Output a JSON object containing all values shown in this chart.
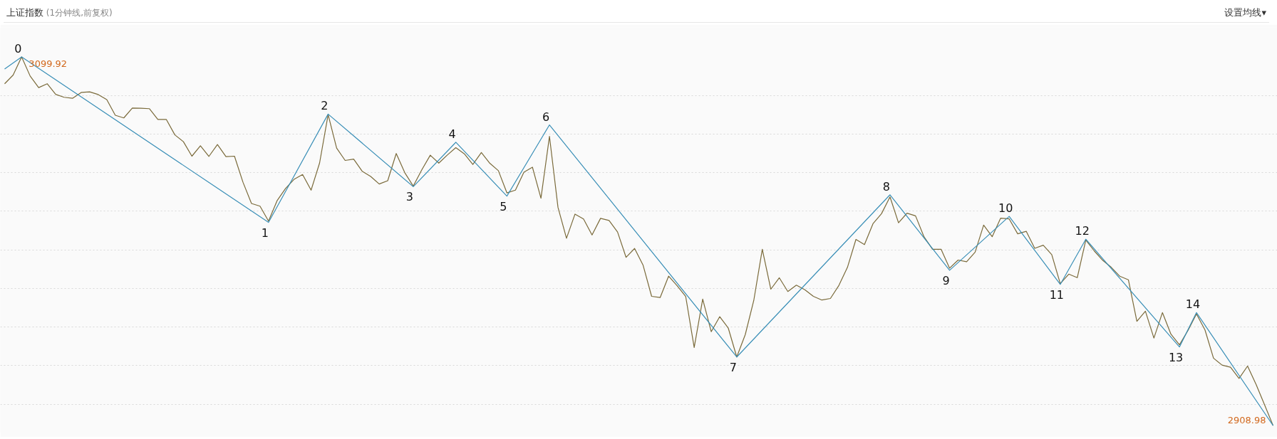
{
  "chart_data": {
    "type": "line",
    "title": "上证指数",
    "subtitle": "(1分钟线,前复权)",
    "categories": [
      null,
      null,
      null,
      null,
      null,
      null,
      null,
      null,
      null,
      null,
      null,
      null,
      null,
      null,
      null,
      null,
      null,
      null,
      null,
      null,
      null,
      null,
      null,
      null,
      null,
      null,
      null,
      null,
      null,
      null,
      null,
      null,
      null,
      null,
      null,
      null,
      null,
      null,
      null,
      null,
      null,
      null,
      null,
      null,
      null,
      null,
      null,
      null,
      null,
      null,
      null,
      null,
      null,
      null,
      null,
      null,
      null,
      null,
      null,
      null,
      null,
      null,
      null,
      null,
      null,
      null,
      null,
      null,
      null,
      null,
      null,
      null,
      null,
      null,
      null,
      null,
      null,
      null,
      null,
      null,
      null,
      null,
      null,
      null,
      null,
      null,
      null,
      null,
      null,
      null,
      null,
      null,
      null,
      null,
      null,
      null,
      null,
      null,
      null,
      null,
      null,
      null,
      null,
      null,
      null,
      null,
      null,
      null,
      null,
      null,
      null,
      null,
      null,
      null,
      null,
      null,
      null,
      null,
      null,
      null,
      null,
      null,
      null,
      null,
      null,
      null,
      null,
      null,
      null,
      null,
      null,
      null,
      null,
      null,
      null,
      null,
      null,
      null,
      null,
      null,
      null,
      null,
      null,
      null,
      null,
      null,
      null,
      null,
      null,
      null
    ],
    "yticks": [
      {
        "value": 2920,
        "label": null
      },
      {
        "value": 2940,
        "label": null
      },
      {
        "value": 2960,
        "label": null
      },
      {
        "value": 2980,
        "label": null
      },
      {
        "value": 3000,
        "label": null
      },
      {
        "value": 3020,
        "label": null
      },
      {
        "value": 3040,
        "label": null
      },
      {
        "value": 3060,
        "label": null
      },
      {
        "value": 3080,
        "label": null
      }
    ],
    "grid": "y",
    "tick_labels": false,
    "marker": "none",
    "line_style": "solid",
    "series": [
      {
        "color": "#7a6a3a",
        "values": [
          3086.0,
          3090.5,
          3099.92,
          3090.0,
          3084.0,
          3086.0,
          3080.5,
          3079.0,
          3078.5,
          3081.5,
          3081.8,
          3080.4,
          3077.8,
          3069.7,
          3068.3,
          3073.4,
          3073.3,
          3073.1,
          3067.5,
          3067.5,
          3059.5,
          3056.0,
          3048.5,
          3053.9,
          3048.4,
          3054.5,
          3048.3,
          3048.5,
          3035.0,
          3024.0,
          3022.6,
          3014.9,
          3025.4,
          3031.8,
          3036.5,
          3039.0,
          3030.9,
          3045.0,
          3070.0,
          3052.7,
          3046.3,
          3047.0,
          3040.7,
          3038.0,
          3034.1,
          3035.8,
          3049.9,
          3040.0,
          3033.0,
          3041.4,
          3049.0,
          3044.9,
          3049.1,
          3052.9,
          3049.7,
          3044.2,
          3050.4,
          3044.8,
          3041.0,
          3029.5,
          3030.9,
          3040.2,
          3042.8,
          3026.7,
          3058.8,
          3022.0,
          3006.0,
          3018.5,
          3016.0,
          3007.7,
          3016.3,
          3015.2,
          3009.2,
          2996.1,
          3000.7,
          2992.0,
          2975.9,
          2975.3,
          2986.4,
          2981.4,
          2975.9,
          2949.4,
          2974.5,
          2957.6,
          2965.4,
          2959.5,
          2944.5,
          2956.1,
          2973.8,
          3000.3,
          2979.6,
          2985.5,
          2978.4,
          2981.7,
          2979.3,
          2975.9,
          2974.0,
          2974.8,
          2981.6,
          2990.9,
          3005.4,
          3002.7,
          3013.5,
          3018.7,
          3027.4,
          3014.0,
          3019.0,
          3017.6,
          3006.7,
          3000.3,
          3000.3,
          2990.5,
          2994.7,
          2993.8,
          2998.8,
          3012.8,
          3006.8,
          3016.4,
          3016.0,
          3008.3,
          3009.6,
          3000.8,
          3002.4,
          2997.5,
          2982.5,
          2987.4,
          2985.6,
          3005.1,
          2999.4,
          2994.5,
          2990.9,
          2986.3,
          2984.5,
          2963.0,
          2968.2,
          2954.3,
          2967.5,
          2956.3,
          2950.8,
          2958.2,
          2966.8,
          2958.5,
          2943.9,
          2940.3,
          2939.2,
          2933.4,
          2939.8,
          2930.3,
          2919.7,
          2908.98
        ],
        "value_labels": [
          null,
          null,
          "3099.92",
          null,
          null,
          null,
          null,
          null,
          null,
          null,
          null,
          null,
          null,
          null,
          null,
          null,
          null,
          null,
          null,
          null,
          null,
          null,
          null,
          null,
          null,
          null,
          null,
          null,
          null,
          null,
          null,
          null,
          null,
          null,
          null,
          null,
          null,
          null,
          null,
          null,
          null,
          null,
          null,
          null,
          null,
          null,
          null,
          null,
          null,
          null,
          null,
          null,
          null,
          null,
          null,
          null,
          null,
          null,
          null,
          null,
          null,
          null,
          null,
          null,
          null,
          null,
          null,
          null,
          null,
          null,
          null,
          null,
          null,
          null,
          null,
          null,
          null,
          null,
          null,
          null,
          null,
          null,
          null,
          null,
          null,
          null,
          null,
          null,
          null,
          null,
          null,
          null,
          null,
          null,
          null,
          null,
          null,
          null,
          null,
          null,
          null,
          null,
          null,
          null,
          null,
          null,
          null,
          null,
          null,
          null,
          null,
          null,
          null,
          null,
          null,
          null,
          null,
          null,
          null,
          null,
          null,
          null,
          null,
          null,
          null,
          null,
          null,
          null,
          null,
          null,
          null,
          null,
          null,
          null,
          null,
          null,
          null,
          null,
          null,
          null,
          null,
          null,
          null,
          null,
          null,
          null,
          null,
          null,
          null,
          "2908.98"
        ]
      },
      {
        "color": "#3a8fb7",
        "values": [
          3093.6,
          null,
          3099.92,
          null,
          null,
          null,
          null,
          null,
          null,
          null,
          null,
          null,
          null,
          null,
          null,
          null,
          null,
          null,
          null,
          null,
          null,
          null,
          null,
          null,
          null,
          null,
          null,
          null,
          null,
          null,
          null,
          3014.2,
          null,
          null,
          null,
          null,
          null,
          null,
          3070.3,
          null,
          null,
          null,
          null,
          null,
          null,
          null,
          null,
          null,
          3032.7,
          null,
          null,
          null,
          null,
          3055.7,
          null,
          null,
          null,
          null,
          null,
          3027.8,
          null,
          null,
          null,
          null,
          3064.7,
          null,
          null,
          null,
          null,
          null,
          null,
          null,
          null,
          null,
          null,
          null,
          null,
          null,
          null,
          null,
          null,
          null,
          null,
          null,
          null,
          null,
          2944.5,
          null,
          null,
          null,
          null,
          null,
          null,
          null,
          null,
          null,
          null,
          null,
          null,
          null,
          null,
          null,
          null,
          null,
          3028.5,
          null,
          null,
          null,
          null,
          null,
          null,
          2989.4,
          null,
          null,
          null,
          null,
          null,
          null,
          3017.3,
          null,
          null,
          null,
          null,
          null,
          2982.1,
          null,
          null,
          3005.5,
          null,
          null,
          null,
          null,
          null,
          null,
          null,
          null,
          null,
          null,
          2949.7,
          null,
          2967.5,
          null,
          null,
          null,
          null,
          null,
          null,
          null,
          null,
          2908.98
        ]
      }
    ],
    "annotations": [
      {
        "text": "0",
        "y": 3099.92
      },
      {
        "text": "1",
        "y": 3014.2
      },
      {
        "text": "2",
        "y": 3070.3
      },
      {
        "text": "3",
        "y": 3032.7
      },
      {
        "text": "4",
        "y": 3055.7
      },
      {
        "text": "5",
        "y": 3027.8
      },
      {
        "text": "6",
        "y": 3064.7
      },
      {
        "text": "7",
        "y": 2944.5
      },
      {
        "text": "8",
        "y": 3028.5
      },
      {
        "text": "9",
        "y": 2989.4
      },
      {
        "text": "10",
        "y": 3017.3
      },
      {
        "text": "11",
        "y": 2982.1
      },
      {
        "text": "12",
        "y": 3005.5
      },
      {
        "text": "13",
        "y": 2949.7
      },
      {
        "text": "14",
        "y": 2967.5
      },
      "设置均线▾"
    ]
  }
}
